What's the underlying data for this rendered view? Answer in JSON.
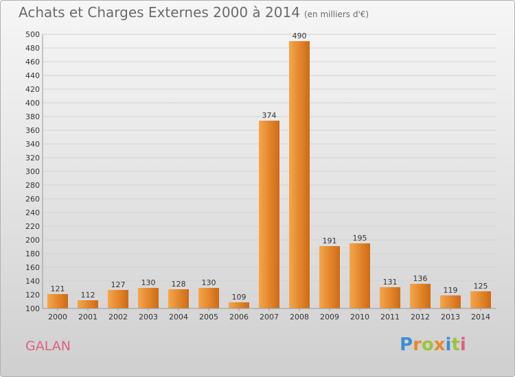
{
  "title": "Achats et Charges Externes 2000 à 2014",
  "subtitle": "(en milliers d'€)",
  "commune": "GALAN",
  "logo": {
    "text": "Proxiti",
    "letters": [
      "P",
      "r",
      "o",
      "x",
      "i",
      "t",
      "i"
    ],
    "colors": [
      "#3a8fd6",
      "#e8892a",
      "#9ac43b",
      "#e8892a",
      "#3a8fd6",
      "#9ac43b",
      "#e0607e"
    ]
  },
  "chart_data": {
    "type": "bar",
    "title": "Achats et Charges Externes 2000 à 2014",
    "subtitle": "(en milliers d'€)",
    "xlabel": "",
    "ylabel": "",
    "categories": [
      "2000",
      "2001",
      "2002",
      "2003",
      "2004",
      "2005",
      "2006",
      "2007",
      "2008",
      "2009",
      "2010",
      "2011",
      "2012",
      "2013",
      "2014"
    ],
    "values": [
      121,
      112,
      127,
      130,
      128,
      130,
      109,
      374,
      490,
      191,
      195,
      131,
      136,
      119,
      125
    ],
    "ylim": [
      100,
      500
    ],
    "yticks": [
      100,
      120,
      140,
      160,
      180,
      200,
      220,
      240,
      260,
      280,
      300,
      320,
      340,
      360,
      380,
      400,
      420,
      440,
      460,
      480,
      500
    ],
    "grid": true,
    "bar_color": "#f0922e",
    "bar_color_dark": "#cf6a14"
  }
}
